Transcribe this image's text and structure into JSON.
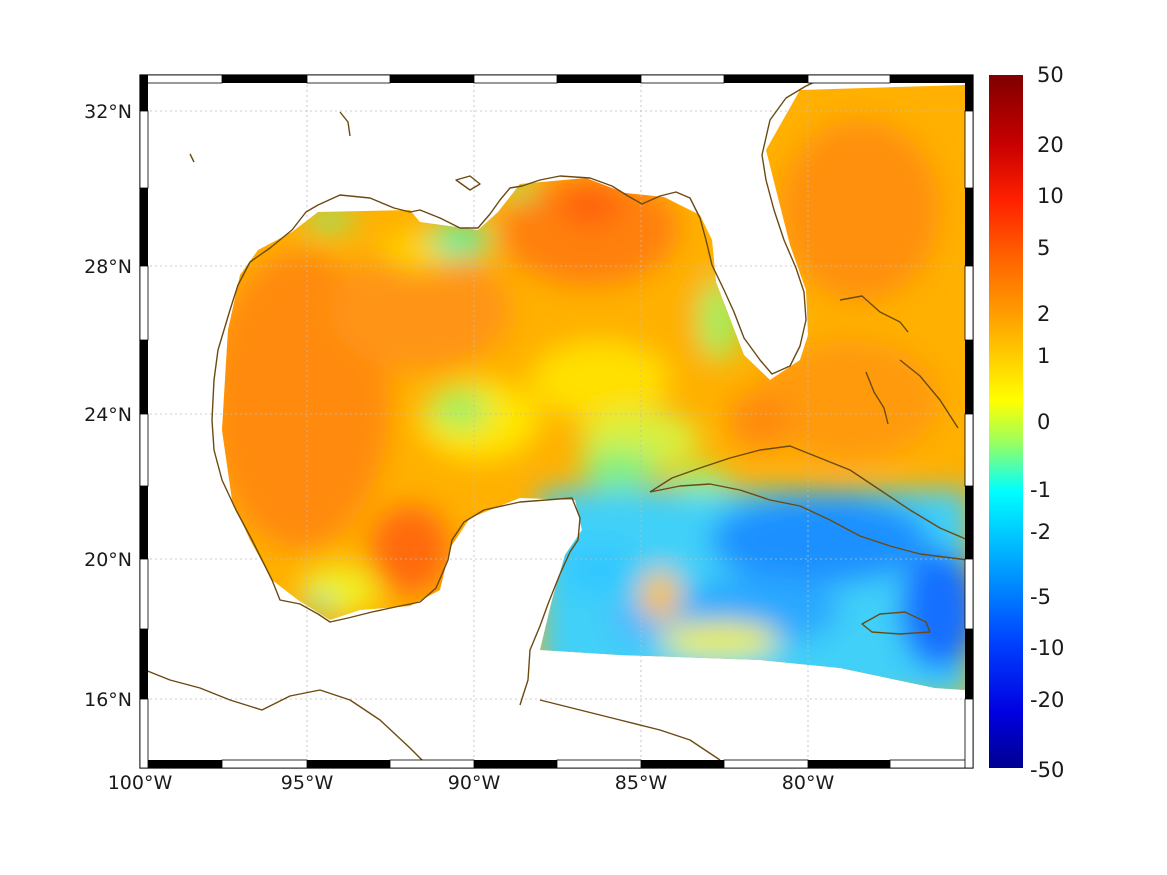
{
  "map": {
    "lon_labels": [
      "100°W",
      "95°W",
      "90°W",
      "85°W",
      "80°W"
    ],
    "lat_labels": [
      "32°N",
      "28°N",
      "24°N",
      "20°N",
      "16°N"
    ],
    "lon_values": [
      -100,
      -95,
      -90,
      -85,
      -80
    ],
    "lat_values": [
      32,
      28,
      24,
      20,
      16
    ],
    "lon_range": [
      -100,
      -75
    ],
    "lat_range": [
      14.3,
      32.9
    ],
    "grid": true,
    "coastline_color": "#6b4a12"
  },
  "colorbar": {
    "labels": [
      "50",
      "20",
      "10",
      "5",
      "2",
      "1",
      "0",
      "-1",
      "-2",
      "-5",
      "-10",
      "-20",
      "-50"
    ],
    "values": [
      50,
      20,
      10,
      5,
      2,
      1,
      0,
      -1,
      -2,
      -5,
      -10,
      -20,
      -50
    ],
    "colormap": [
      "#7f0000",
      "#ff0000",
      "#ff6a00",
      "#ffb400",
      "#ffff00",
      "#9bff5e",
      "#00ffff",
      "#0080ff",
      "#0000ff",
      "#00008f"
    ]
  }
}
